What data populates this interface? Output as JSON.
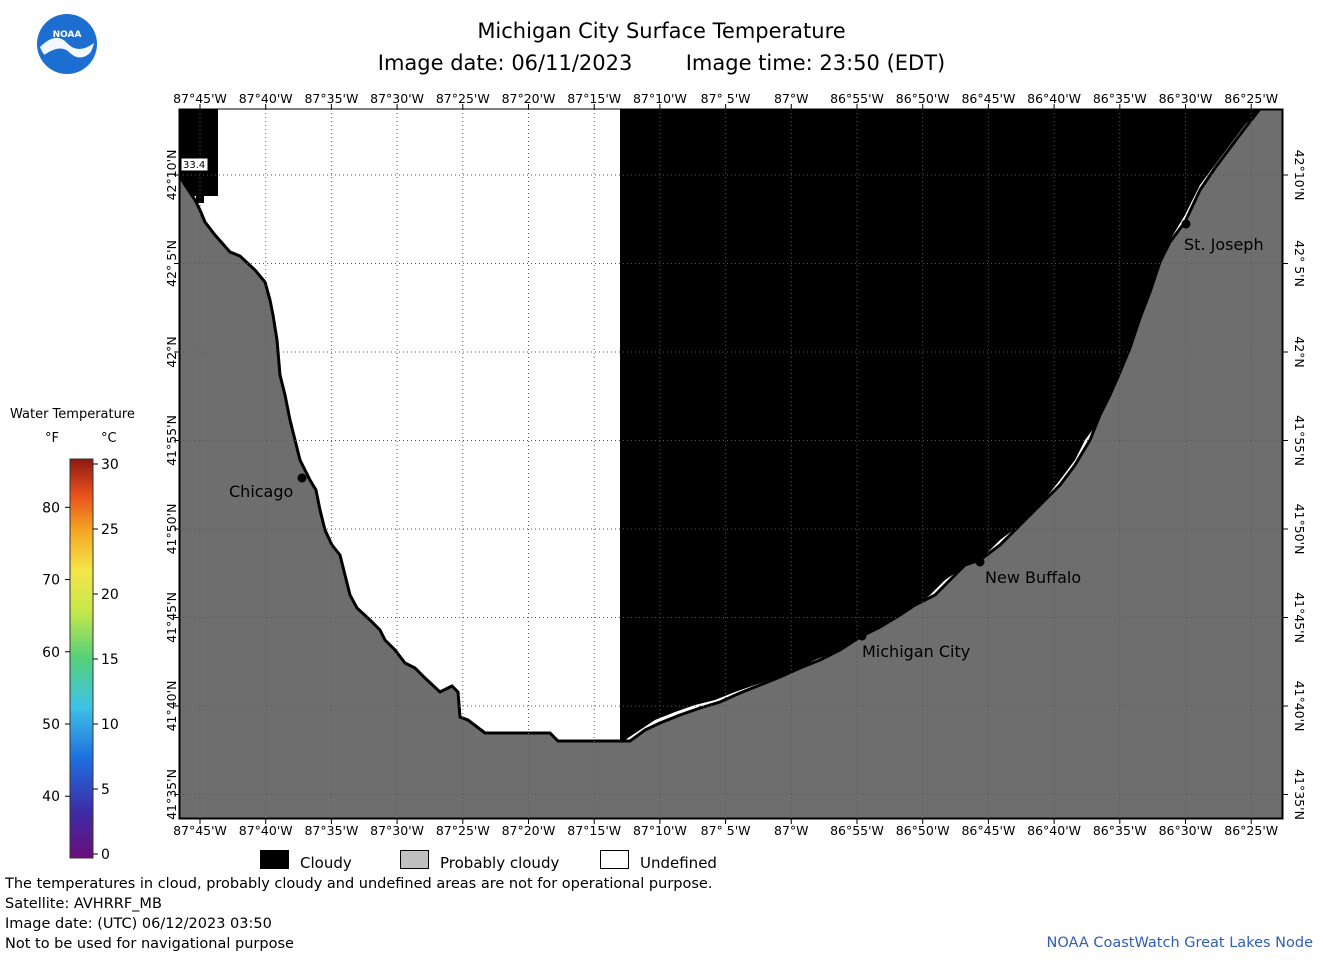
{
  "title": "Michigan City Surface Temperature",
  "image_date_local": "Image date: 06/11/2023",
  "image_time_local": "Image time: 23:50 (EDT)",
  "logo_text": "NOAA",
  "lon_labels": [
    "87°45'W",
    "87°40'W",
    "87°35'W",
    "87°30'W",
    "87°25'W",
    "87°20'W",
    "87°15'W",
    "87°10'W",
    "87° 5'W",
    "87°W",
    "86°55'W",
    "86°50'W",
    "86°45'W",
    "86°40'W",
    "86°35'W",
    "86°30'W",
    "86°25'W"
  ],
  "lat_labels": [
    "42°10'N",
    "42° 5'N",
    "42°N",
    "41°55'N",
    "41°50'N",
    "41°45'N",
    "41°40'N",
    "41°35'N"
  ],
  "cities": [
    {
      "name": "Chicago"
    },
    {
      "name": "Michigan City"
    },
    {
      "name": "New Buffalo"
    },
    {
      "name": "St. Joseph"
    }
  ],
  "value_label": "33.4",
  "colorbar": {
    "title": "Water Temperature",
    "unit_f": "°F",
    "unit_c": "°C",
    "f_ticks": [
      "80",
      "70",
      "60",
      "50",
      "40"
    ],
    "c_ticks": [
      "30",
      "25",
      "20",
      "15",
      "10",
      "5",
      "0"
    ],
    "c_range": [
      0,
      30
    ]
  },
  "legend": {
    "cloudy": "Cloudy",
    "probably_cloudy": "Probably cloudy",
    "undefined": "Undefined"
  },
  "colors": {
    "cloudy": "#000000",
    "probably_cloudy": "#c0c0c0",
    "undefined": "#ffffff",
    "land": "#6e6e6e",
    "credit": "#2f5fb6"
  },
  "notes": {
    "disclaimer": "The temperatures in cloud, probably cloudy and undefined areas are not for operational purpose.",
    "satellite": "Satellite: AVHRRF_MB",
    "utc_date": "Image date: (UTC) 06/12/2023  03:50",
    "navigation": "Not to be used for navigational purpose"
  },
  "credit": "NOAA CoastWatch Great Lakes Node"
}
